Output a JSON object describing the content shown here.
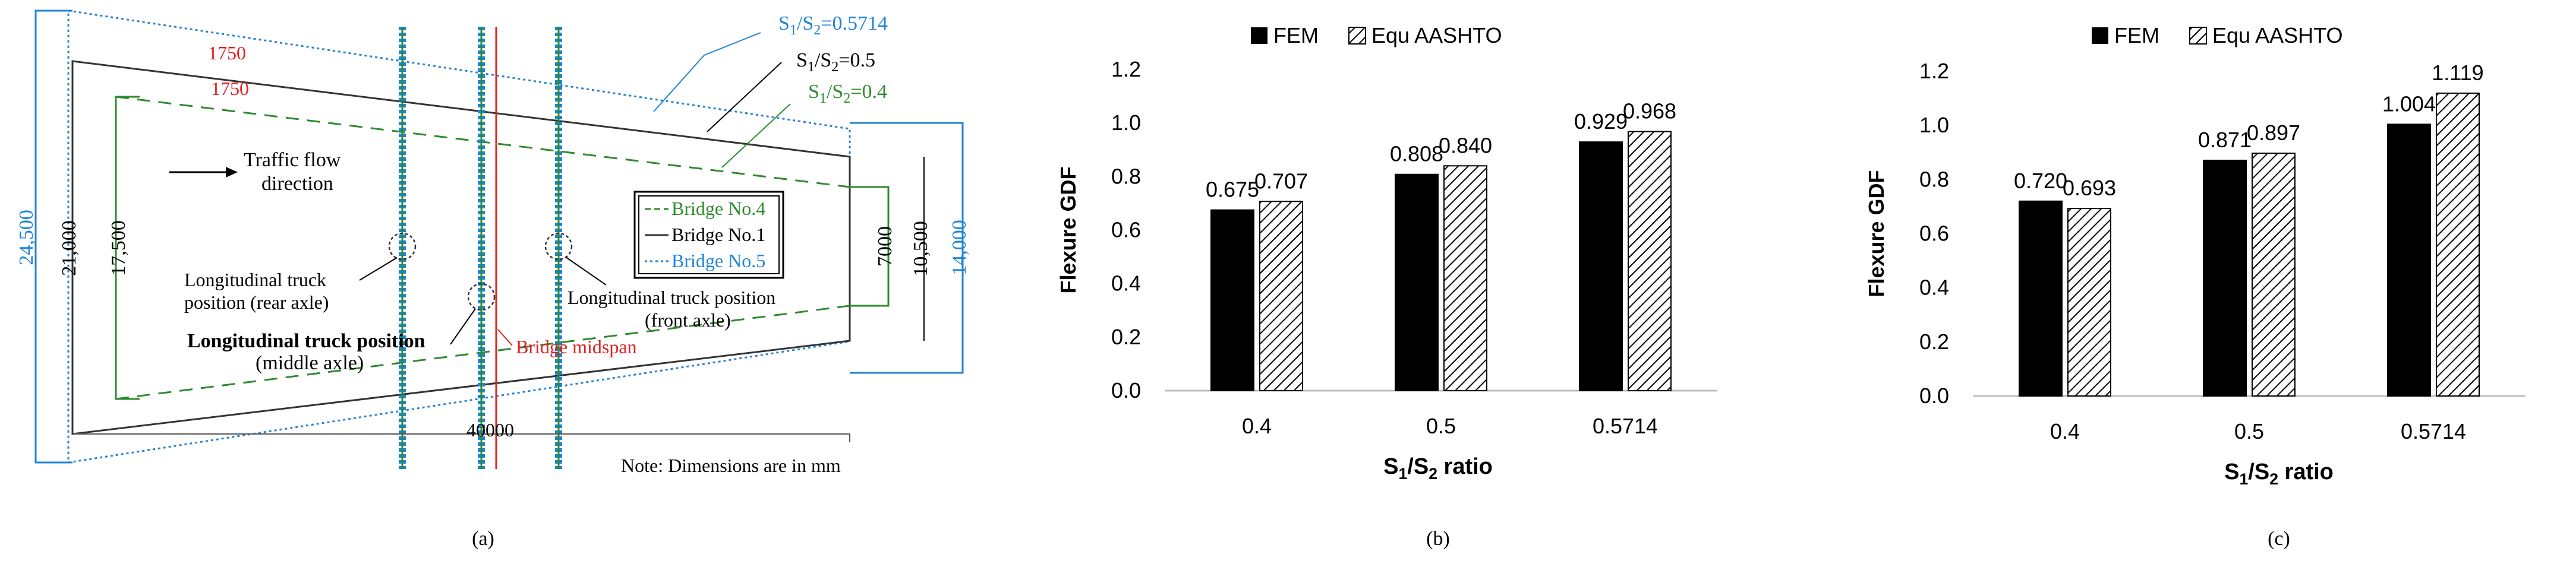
{
  "colors": {
    "blue": "#1f84d6",
    "green": "#2e8b2e",
    "red": "#e02020",
    "black": "#000000",
    "gray": "#666666"
  },
  "panel_a": {
    "label": "(a)",
    "ratio_labels": {
      "r5714": "S1/S2=0.5714",
      "r5": "S1/S2=0.5",
      "r4": "S1/S2=0.4"
    },
    "dims": {
      "left_outer": "24,500",
      "left_mid": "21,000",
      "left_inner": "17,500",
      "right_inner": "7000",
      "right_mid": "10,500",
      "right_outer": "14,000",
      "offset_top": "1750",
      "offset_inner": "1750",
      "length": "40000"
    },
    "traffic": [
      "Traffic flow",
      "direction"
    ],
    "legend": [
      "Bridge No.4",
      "Bridge No.1",
      "Bridge No.5"
    ],
    "rear_axle": [
      "Longitudinal truck",
      "position (rear axle)"
    ],
    "middle_axle": [
      "Longitudinal truck position",
      "(middle axle)"
    ],
    "front_axle": [
      "Longitudinal truck position",
      "(front axle)"
    ],
    "midspan": "Bridge midspan",
    "note": "Note: Dimensions are in mm"
  },
  "chart_data": [
    {
      "type": "bar",
      "panel": "(b)",
      "categories": [
        "0.4",
        "0.5",
        "0.5714"
      ],
      "series": [
        {
          "name": "FEM",
          "values": [
            0.675,
            0.808,
            0.929
          ]
        },
        {
          "name": "Equ AASHTO",
          "values": [
            0.707,
            0.84,
            0.968
          ]
        }
      ],
      "value_labels": [
        [
          "0.675",
          "0.808",
          "0.929"
        ],
        [
          "0.707",
          "0.840",
          "0.968"
        ]
      ],
      "xlabel": "S1/S2 ratio",
      "ylabel": "Flexure GDF",
      "ylim": [
        0,
        1.2
      ],
      "yticks": [
        "0.0",
        "0.2",
        "0.4",
        "0.6",
        "0.8",
        "1.0",
        "1.2"
      ],
      "grid": false,
      "legend": "top"
    },
    {
      "type": "bar",
      "panel": "(c)",
      "categories": [
        "0.4",
        "0.5",
        "0.5714"
      ],
      "series": [
        {
          "name": "FEM",
          "values": [
            0.72,
            0.871,
            1.004
          ]
        },
        {
          "name": "Equ AASHTO",
          "values": [
            0.693,
            0.897,
            1.119
          ]
        }
      ],
      "value_labels": [
        [
          "0.720",
          "0.871",
          "1.004"
        ],
        [
          "0.693",
          "0.897",
          "1.119"
        ]
      ],
      "xlabel": "S1/S2 ratio",
      "ylabel": "Flexure GDF",
      "ylim": [
        0,
        1.2
      ],
      "yticks": [
        "0.0",
        "0.2",
        "0.4",
        "0.6",
        "0.8",
        "1.0",
        "1.2"
      ],
      "grid": false,
      "legend": "top"
    }
  ]
}
